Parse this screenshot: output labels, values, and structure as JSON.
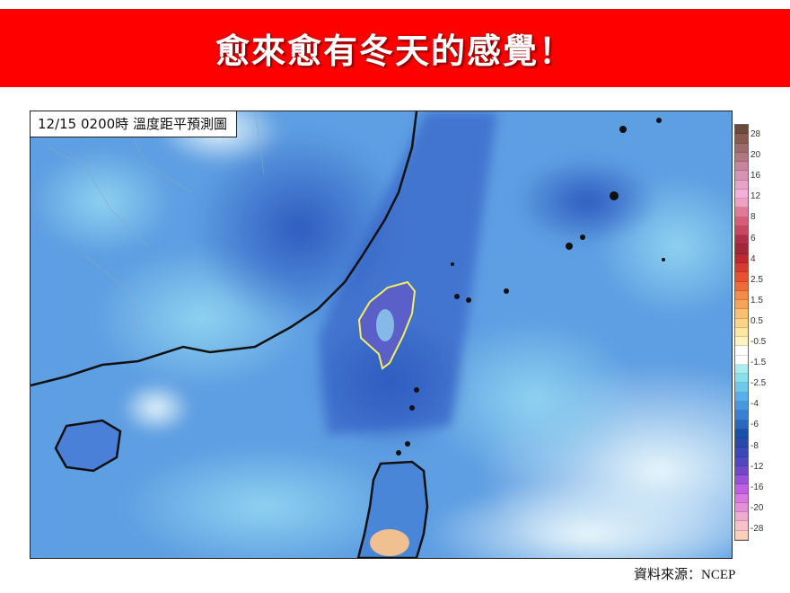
{
  "banner": {
    "title": "愈來愈有冬天的感覺！",
    "color": "#fe0000"
  },
  "map": {
    "caption": "12/15 0200時  溫度距平預測圖",
    "source": "資料來源：NCEP"
  },
  "colorbar": {
    "labels": [
      "28",
      "20",
      "16",
      "12",
      "8",
      "6",
      "4",
      "2.5",
      "1.5",
      "0.5",
      "-0.5",
      "-1.5",
      "-2.5",
      "-4",
      "-6",
      "-8",
      "-12",
      "-16",
      "-20",
      "-28"
    ],
    "colors": [
      "#6b4a3a",
      "#8a5a4e",
      "#9c6a6a",
      "#b07682",
      "#c8849c",
      "#d892b4",
      "#e8a4c8",
      "#f4b0d8",
      "#f0a0c0",
      "#e07a98",
      "#d85c78",
      "#c84860",
      "#b03048",
      "#a02838",
      "#c02830",
      "#d83a30",
      "#e85030",
      "#f06a38",
      "#f48a48",
      "#f8a458",
      "#fac070",
      "#fcd488",
      "#fce8a0",
      "#fcf4c0",
      "#ffffff",
      "#ffffff",
      "#a8eef0",
      "#88e0ec",
      "#70c8ec",
      "#5ab0ec",
      "#4898e0",
      "#3a80d0",
      "#2a68c0",
      "#1a50a8",
      "#2a4aa8",
      "#3a48b8",
      "#5048c0",
      "#7048c8",
      "#9a50d8",
      "#c060e0",
      "#d878e0",
      "#e490d8",
      "#eeaad0",
      "#f8c0c8",
      "#fcd0b8"
    ]
  }
}
